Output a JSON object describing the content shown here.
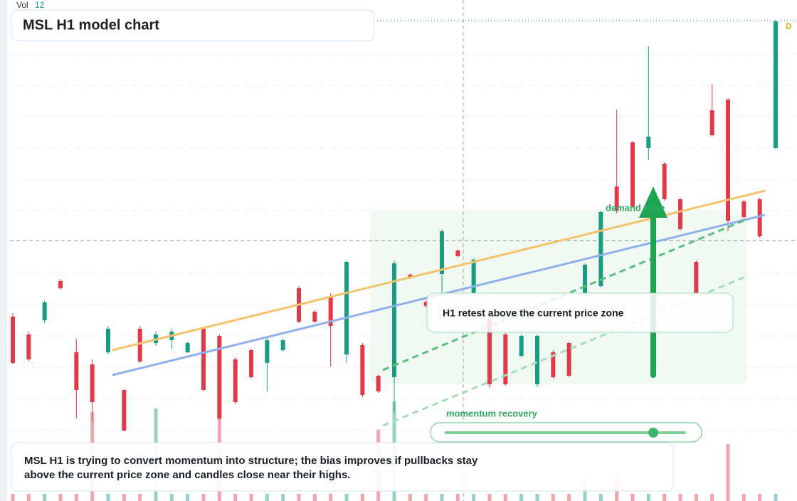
{
  "chart_data": {
    "type": "candlestick",
    "title": "MSL H1 model chart",
    "volume_label": "Vol",
    "volume_value": 12,
    "marker": "D",
    "zone_label": "demand zone",
    "annotation": "H1 retest above the current price zone",
    "slider_label": "momentum recovery",
    "caption": [
      "MSL H1 is trying to convert momentum into structure; the bias improves if pullbacks stay",
      "above the current price zone and candles close near their highs."
    ],
    "up_color": "#1a9c82",
    "down_color": "#e0394a",
    "ylim": [
      0,
      704
    ],
    "open": [
      259,
      234,
      254,
      309,
      209,
      192,
      209,
      156,
      242,
      222,
      226,
      209,
      242,
      232,
      199,
      212,
      194,
      212,
      299,
      266,
      286,
      206,
      219,
      176,
      174,
      318,
      280,
      319,
      352,
      292,
      256,
      234,
      204,
      164,
      209,
      222,
      292,
      302,
      442,
      504,
      496,
      474,
      424,
      336,
      549,
      564,
      421,
      424,
      496
    ],
    "high": [
      264,
      238,
      282,
      312,
      228,
      199,
      246,
      157,
      246,
      238,
      242,
      224,
      244,
      234,
      202,
      214,
      229,
      228,
      302,
      268,
      292,
      338,
      222,
      178,
      338,
      320,
      282,
      382,
      354,
      341,
      260,
      236,
      234,
      234,
      212,
      224,
      334,
      408,
      550,
      506,
      639,
      476,
      426,
      338,
      586,
      566,
      423,
      426,
      676
    ],
    "low": [
      192,
      196,
      250,
      297,
      116,
      112,
      206,
      98,
      194,
      218,
      214,
      208,
      154,
      114,
      136,
      172,
      154,
      210,
      250,
      250,
      189,
      194,
      146,
      152,
      124,
      312,
      272,
      286,
      342,
      290,
      159,
      162,
      202,
      160,
      172,
      174,
      290,
      300,
      404,
      412,
      479,
      422,
      380,
      290,
      512,
      379,
      397,
      370,
      494
    ],
    "close": [
      194,
      199,
      279,
      299,
      156,
      139,
      242,
      99,
      196,
      234,
      238,
      222,
      156,
      116,
      139,
      174,
      226,
      226,
      252,
      252,
      246,
      336,
      149,
      154,
      334,
      314,
      274,
      379,
      344,
      339,
      164,
      164,
      232,
      232,
      174,
      176,
      332,
      406,
      408,
      414,
      512,
      424,
      382,
      292,
      514,
      394,
      399,
      372,
      674
    ],
    "volume": [
      10,
      10,
      10,
      10,
      10,
      125,
      10,
      10,
      10,
      130,
      10,
      10,
      10,
      120,
      10,
      10,
      10,
      10,
      10,
      10,
      10,
      10,
      10,
      100,
      140,
      10,
      10,
      10,
      10,
      10,
      10,
      10,
      10,
      10,
      10,
      10,
      32,
      10,
      35,
      10,
      10,
      10,
      10,
      10,
      10,
      80,
      10,
      10,
      10
    ]
  }
}
